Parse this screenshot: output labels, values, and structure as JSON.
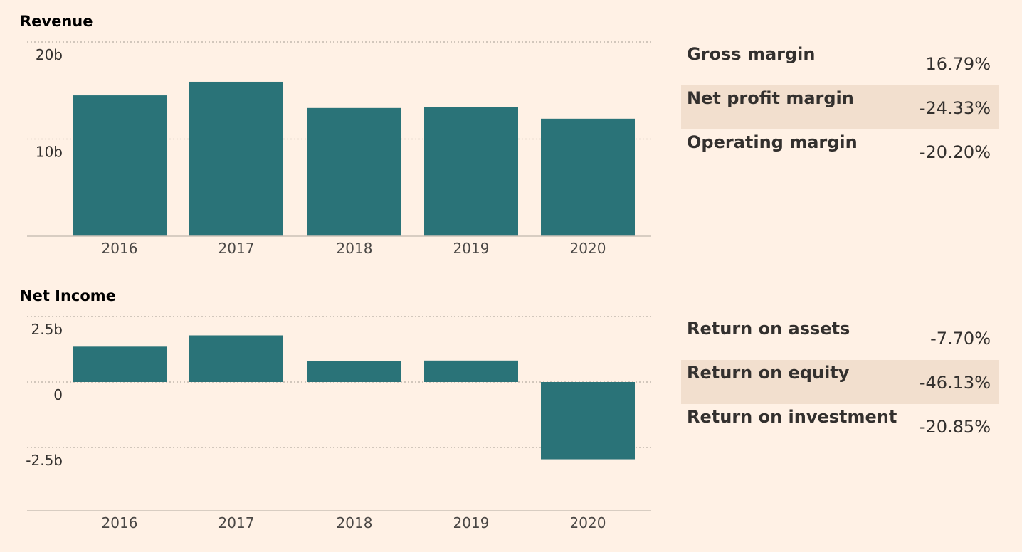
{
  "charts": [
    {
      "id": "revenue",
      "title": "Revenue",
      "type": "bar",
      "categories": [
        "2016",
        "2017",
        "2018",
        "2019",
        "2020"
      ],
      "values": [
        14.5,
        15.9,
        13.2,
        13.3,
        12.1
      ],
      "unit": "b",
      "ylim": [
        0,
        20
      ],
      "ticks": [
        {
          "v": 20,
          "label": "20b"
        },
        {
          "v": 10,
          "label": "10b"
        }
      ],
      "bar_color": "#2A7378"
    },
    {
      "id": "net-income",
      "title": "Net Income",
      "type": "bar",
      "categories": [
        "2016",
        "2017",
        "2018",
        "2019",
        "2020"
      ],
      "values": [
        1.35,
        1.78,
        0.8,
        0.82,
        -2.95
      ],
      "unit": "b",
      "ylim": [
        -5,
        2.5
      ],
      "ticks": [
        {
          "v": 2.5,
          "label": "2.5b"
        },
        {
          "v": 0,
          "label": "0"
        },
        {
          "v": -2.5,
          "label": "-2.5b"
        }
      ],
      "bar_color": "#2A7378"
    }
  ],
  "margins": [
    {
      "label": "Gross margin",
      "value": "16.79%"
    },
    {
      "label": "Net profit margin",
      "value": "-24.33%"
    },
    {
      "label": "Operating margin",
      "value": "-20.20%"
    }
  ],
  "returns": [
    {
      "label": "Return on assets",
      "value": "-7.70%"
    },
    {
      "label": "Return on equity",
      "value": "-46.13%"
    },
    {
      "label": "Return on investment",
      "value": "-20.85%"
    }
  ],
  "colors": {
    "background": "#FFF1E5",
    "highlight_row": "#F2DFCE",
    "bar": "#2A7378"
  },
  "chart_data": [
    {
      "type": "bar",
      "title": "Revenue",
      "categories": [
        "2016",
        "2017",
        "2018",
        "2019",
        "2020"
      ],
      "series": [
        {
          "values": [
            14.5,
            15.9,
            13.2,
            13.3,
            12.1
          ]
        }
      ],
      "ylim": [
        0,
        20
      ],
      "ytick_labels": [
        "20b",
        "10b"
      ],
      "grid": true
    },
    {
      "type": "bar",
      "title": "Net Income",
      "categories": [
        "2016",
        "2017",
        "2018",
        "2019",
        "2020"
      ],
      "series": [
        {
          "values": [
            1.35,
            1.78,
            0.8,
            0.82,
            -2.95
          ]
        }
      ],
      "ylim": [
        -5,
        2.5
      ],
      "ytick_labels": [
        "2.5b",
        "0",
        "-2.5b"
      ],
      "grid": true
    }
  ]
}
